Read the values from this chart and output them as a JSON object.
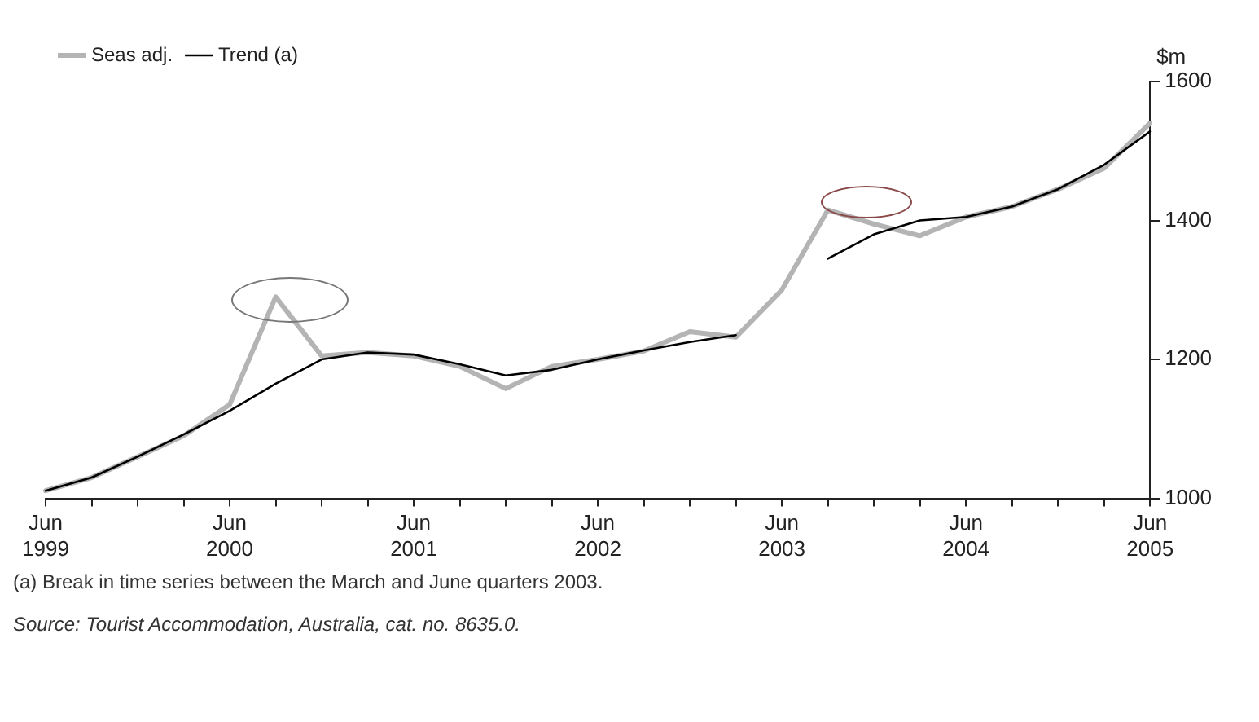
{
  "chart_data": {
    "type": "line",
    "ylabel": "$m",
    "categories": [
      "Jun 1999",
      null,
      null,
      null,
      "Jun 2000",
      null,
      null,
      null,
      "Jun 2001",
      null,
      null,
      null,
      "Jun 2002",
      null,
      null,
      null,
      "Jun 2003",
      null,
      null,
      null,
      "Jun 2004",
      null,
      null,
      null,
      "Jun 2005"
    ],
    "series": [
      {
        "name": "Seas adj.",
        "color": "#b4b4b4",
        "values": [
          1011,
          1030,
          1060,
          1090,
          1135,
          1290,
          1205,
          1210,
          1205,
          1190,
          1158,
          1190,
          1200,
          1212,
          1240,
          1232,
          1300,
          1415,
          1395,
          1378,
          1405,
          1420,
          1445,
          1475,
          1540
        ]
      },
      {
        "name": "Trend (a)",
        "color": "#000000",
        "values": [
          1011,
          1030,
          1060,
          1092,
          1126,
          1165,
          1200,
          1210,
          1207,
          1193,
          1177,
          1185,
          1200,
          1213,
          1225,
          1235,
          null,
          1345,
          1380,
          1400,
          1405,
          1420,
          1445,
          1480,
          1528
        ]
      }
    ],
    "ylim": [
      1000,
      1600
    ],
    "yticks": [
      1000,
      1200,
      1400,
      1600
    ],
    "grid": false,
    "legend": "top left",
    "marker": "none",
    "line_style": "solid",
    "annotations": [
      "(a) Break in time series between the March and June quarters 2003.",
      "Source: Tourist Accommodation, Australia, cat. no. 8635.0."
    ]
  }
}
